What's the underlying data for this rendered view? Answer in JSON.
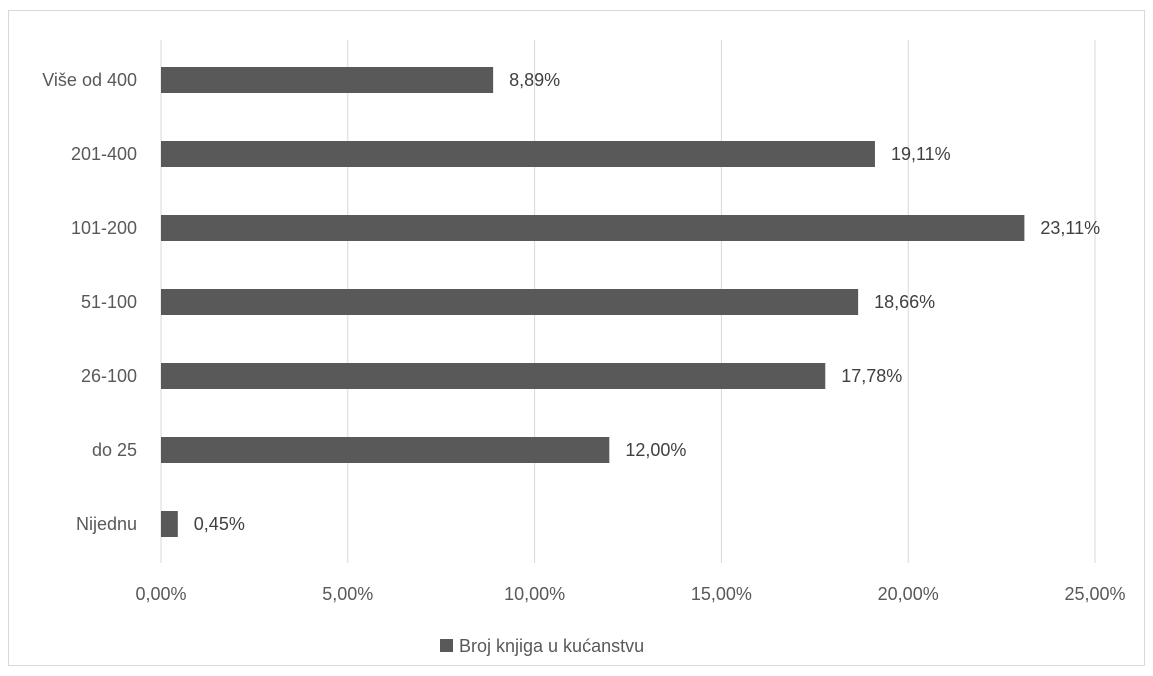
{
  "chart_data": {
    "type": "bar",
    "orientation": "horizontal",
    "categories": [
      "Nijednu",
      "do 25",
      "26-100",
      "51-100",
      "101-200",
      "201-400",
      "Više od 400"
    ],
    "series": [
      {
        "name": "Broj knjiga u kućanstvu",
        "values": [
          0.45,
          12.0,
          17.78,
          18.66,
          23.11,
          19.11,
          8.89
        ],
        "labels": [
          "0,45%",
          "12,00%",
          "17,78%",
          "18,66%",
          "23,11%",
          "19,11%",
          "8,89%"
        ]
      }
    ],
    "x_ticks": [
      "0,00%",
      "5,00%",
      "10,00%",
      "15,00%",
      "20,00%",
      "25,00%"
    ],
    "xlim": [
      0,
      25
    ],
    "grid": true,
    "legend_position": "bottom",
    "colors": {
      "bar": "#595959",
      "grid": "#d9d9d9",
      "text": "#595959"
    }
  }
}
